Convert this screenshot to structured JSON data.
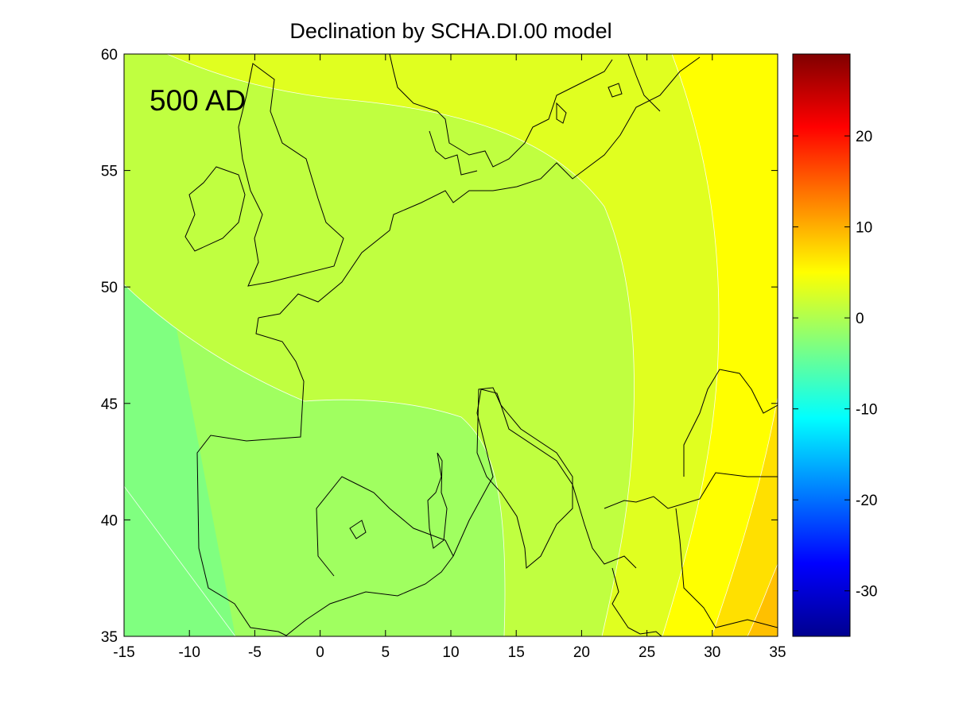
{
  "title": "Declination by SCHA.DI.00 model",
  "epoch_label": "500 AD",
  "colors": {
    "band_n4": "#80ff80",
    "band_n2": "#a0ff60",
    "band_0": "#c0ff40",
    "band_2": "#e0ff20",
    "band_4": "#ffff00",
    "band_6": "#ffe000",
    "band_8": "#ffc000",
    "coastline": "#000000",
    "contour": "#ffffff"
  },
  "chart_data": {
    "type": "heatmap",
    "title": "Declination by SCHA.DI.00 model",
    "annotation": "500 AD",
    "xlim": [
      -15,
      35
    ],
    "ylim": [
      35,
      60
    ],
    "xticks": [
      "-15",
      "-10",
      "-5",
      "0",
      "5",
      "10",
      "15",
      "20",
      "25",
      "30",
      "35"
    ],
    "yticks": [
      "35",
      "40",
      "45",
      "50",
      "55",
      "60"
    ],
    "colorbar": {
      "range": [
        -35,
        29
      ],
      "ticks": [
        "20",
        "10",
        "0",
        "-10",
        "-20",
        "-30"
      ],
      "colormap": "jet"
    },
    "declination_levels": [
      -4,
      -2,
      0,
      2,
      4,
      6,
      8
    ],
    "grid": false
  }
}
